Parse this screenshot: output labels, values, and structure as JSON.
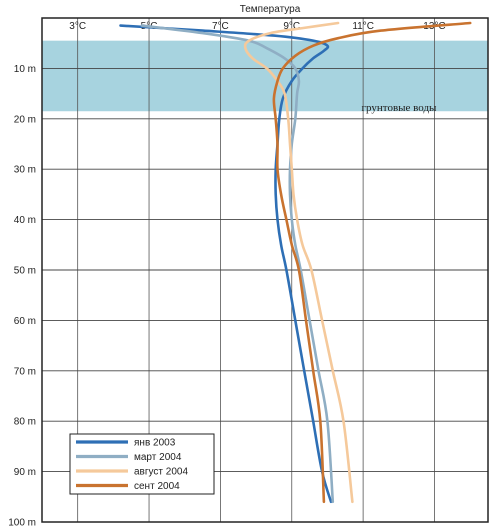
{
  "chart_data": {
    "type": "line",
    "title": "Температура",
    "x_ticks": [
      "3°C",
      "5°C",
      "7°C",
      "9°C",
      "11°C",
      "13°C"
    ],
    "x_tick_values": [
      3,
      5,
      7,
      9,
      11,
      13
    ],
    "y_ticks": [
      "10 m",
      "20 m",
      "30 m",
      "40 m",
      "50 m",
      "60 m",
      "70 m",
      "80 m",
      "90 m",
      "100 m"
    ],
    "y_tick_values": [
      10,
      20,
      30,
      40,
      50,
      60,
      70,
      80,
      90,
      100
    ],
    "xlim": [
      2,
      14.5
    ],
    "ylim": [
      0,
      100
    ],
    "y_inverted": true,
    "grid": true,
    "legend_position": "bottom-left",
    "annotation": {
      "label": "грунтовые воды",
      "from_depth": 4.5,
      "to_depth": 18.5,
      "color": "#a7d3df"
    },
    "series": [
      {
        "name": "янв 2003",
        "color": "#2e6fb5",
        "x": [
          4.2,
          6.5,
          8.5,
          9.6,
          10.0,
          9.9,
          9.6,
          9.3,
          9.0,
          8.75,
          8.65,
          8.6,
          8.55,
          8.55,
          8.6,
          8.7,
          8.85,
          9.1,
          9.35,
          9.6,
          9.85,
          10.1
        ],
        "y": [
          1.5,
          2.5,
          3.5,
          4.5,
          5.5,
          6.5,
          8,
          10,
          12.5,
          16,
          20,
          25,
          30,
          35,
          40,
          45,
          50,
          60,
          70,
          80,
          90,
          96
        ]
      },
      {
        "name": "март 2004",
        "color": "#8faec4",
        "x": [
          4.8,
          6.5,
          7.8,
          8.3,
          8.8,
          9.1,
          9.2,
          9.15,
          9.1,
          9.0,
          8.95,
          8.95,
          9.0,
          9.1,
          9.25,
          9.5,
          9.75,
          10.0,
          10.15
        ],
        "y": [
          1.5,
          3,
          4.5,
          6,
          8,
          10,
          12.5,
          15,
          20,
          25,
          30,
          35,
          40,
          45,
          50,
          60,
          70,
          80,
          96
        ]
      },
      {
        "name": "август 2004",
        "color": "#f5c99b",
        "x": [
          10.3,
          9.3,
          8.4,
          7.8,
          7.7,
          7.9,
          8.3,
          8.6,
          8.8,
          8.9,
          8.95,
          9.0,
          9.05,
          9.15,
          9.3,
          9.55,
          9.85,
          10.15,
          10.45,
          10.7
        ],
        "y": [
          1,
          2,
          3,
          4.5,
          6,
          8,
          10,
          12.5,
          15,
          20,
          25,
          30,
          35,
          40,
          45,
          50,
          60,
          70,
          80,
          96
        ]
      },
      {
        "name": "сент 2004",
        "color": "#c9732f",
        "x": [
          14.0,
          11.5,
          10.3,
          9.6,
          9.1,
          8.75,
          8.6,
          8.5,
          8.55,
          8.6,
          8.6,
          8.7,
          8.85,
          9.0,
          9.2,
          9.4,
          9.6,
          9.8,
          9.9
        ],
        "y": [
          1,
          2.5,
          4,
          5.5,
          7.5,
          10,
          12.5,
          16,
          20,
          25,
          30,
          35,
          40,
          45,
          50,
          60,
          70,
          80,
          96
        ]
      }
    ]
  }
}
